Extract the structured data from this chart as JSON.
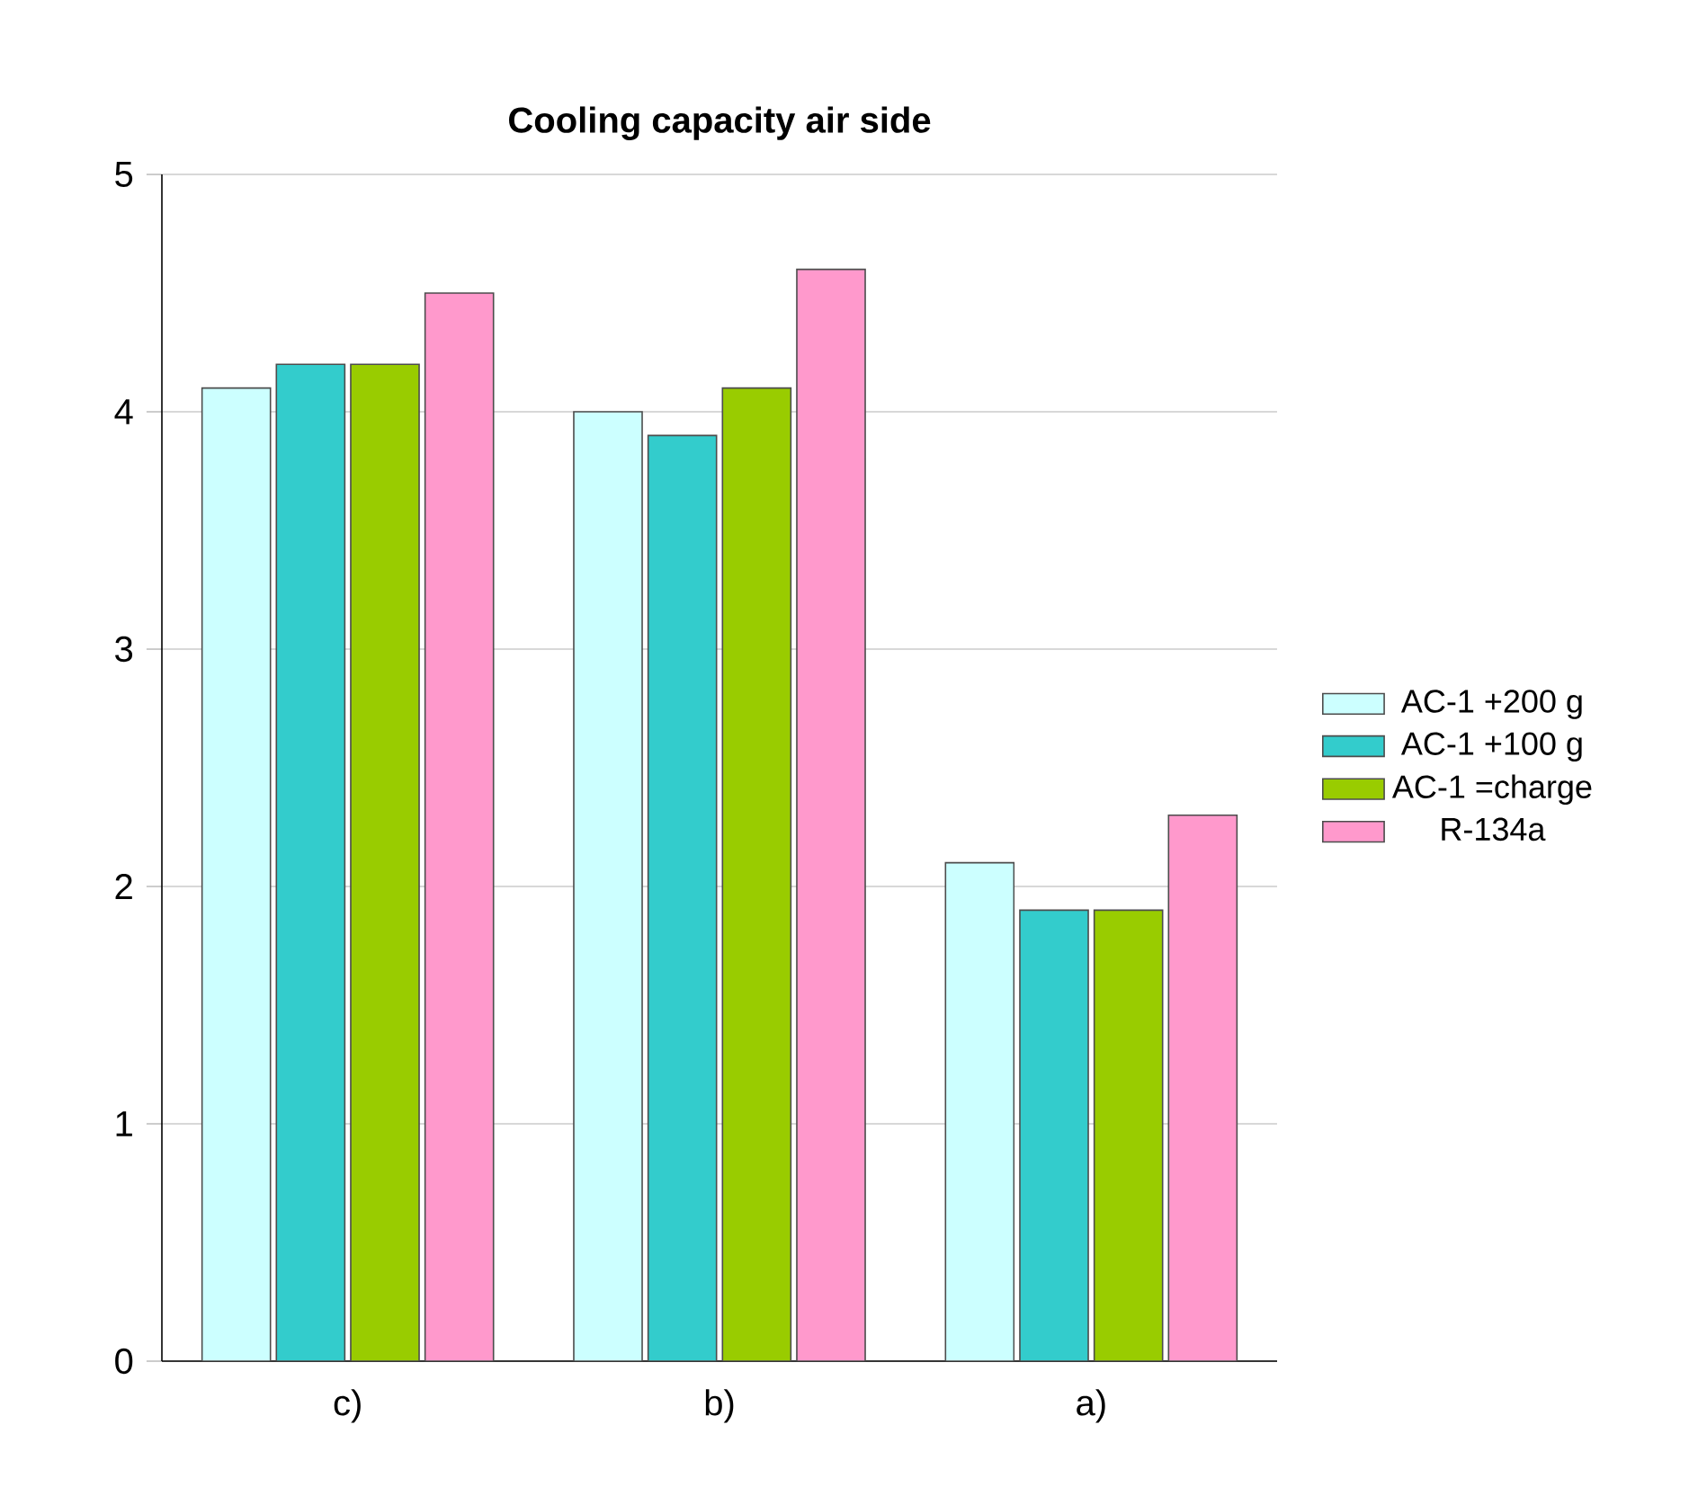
{
  "chart_data": {
    "type": "bar",
    "title": "Cooling capacity air side",
    "categories": [
      "c)",
      "b)",
      "a)"
    ],
    "series": [
      {
        "name": "AC-1 +200 g",
        "color": "#ccffff",
        "values": [
          4.1,
          4.0,
          2.1
        ]
      },
      {
        "name": "AC-1 +100 g",
        "color": "#33cccc",
        "values": [
          4.2,
          3.9,
          1.9
        ]
      },
      {
        "name": "AC-1 =charge",
        "color": "#99cc00",
        "values": [
          4.2,
          4.1,
          1.9
        ]
      },
      {
        "name": "R-134a",
        "color": "#ff99cc",
        "values": [
          4.5,
          4.6,
          2.3
        ]
      }
    ],
    "ylim": [
      0,
      5
    ],
    "yticks": [
      0,
      1,
      2,
      3,
      4,
      5
    ],
    "grid": "y",
    "legend": "right"
  }
}
